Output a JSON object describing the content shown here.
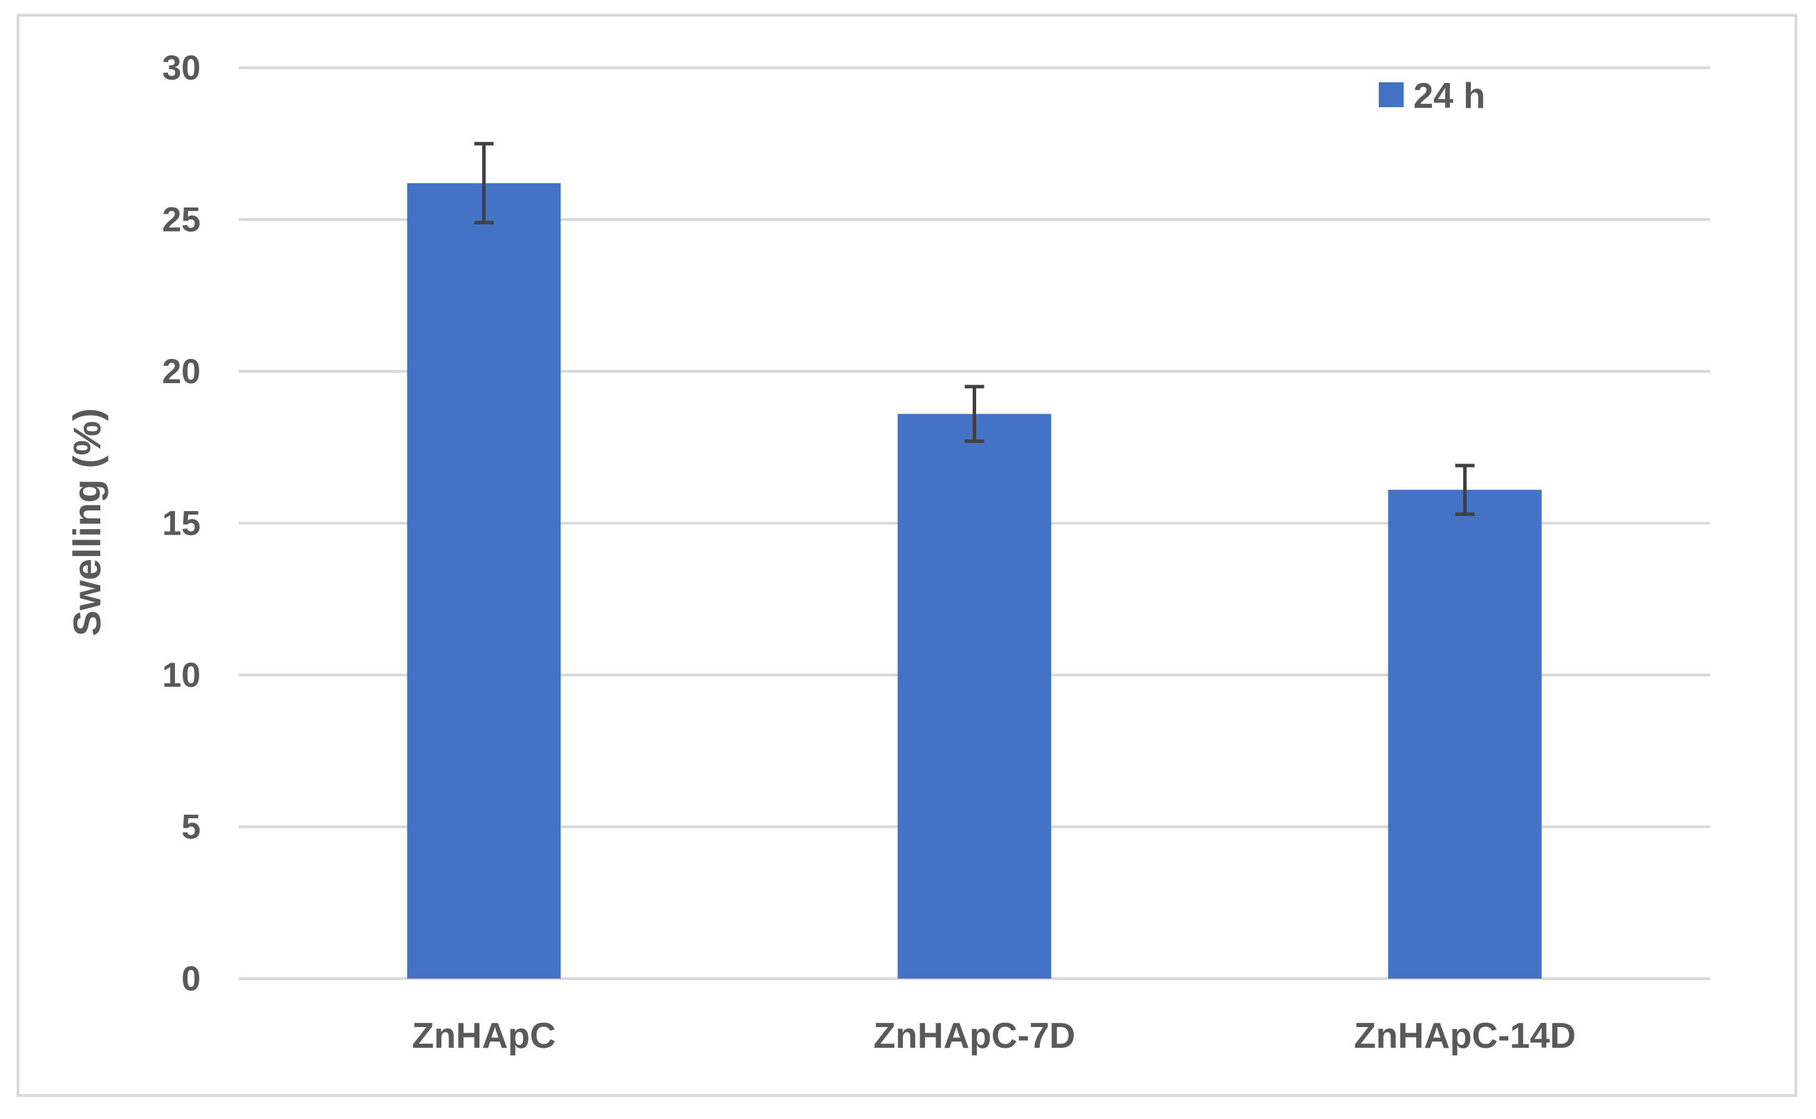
{
  "chart_data": {
    "type": "bar",
    "categories": [
      "ZnHApC",
      "ZnHApC-7D",
      "ZnHApC-14D"
    ],
    "series": [
      {
        "name": "24 h",
        "values": [
          26.2,
          18.6,
          16.1
        ],
        "error": [
          1.3,
          0.9,
          0.8
        ],
        "color": "#4472c4"
      }
    ],
    "xlabel": "",
    "ylabel": "Swelling (%)",
    "ylim": [
      0,
      30
    ],
    "yticks": [
      0,
      5,
      10,
      15,
      20,
      25,
      30
    ],
    "grid": true,
    "legend": "top-right",
    "colors": {
      "bar": "#4472c4",
      "grid": "#d9d9d9",
      "text": "#595959",
      "errorbar": "#404040"
    }
  }
}
